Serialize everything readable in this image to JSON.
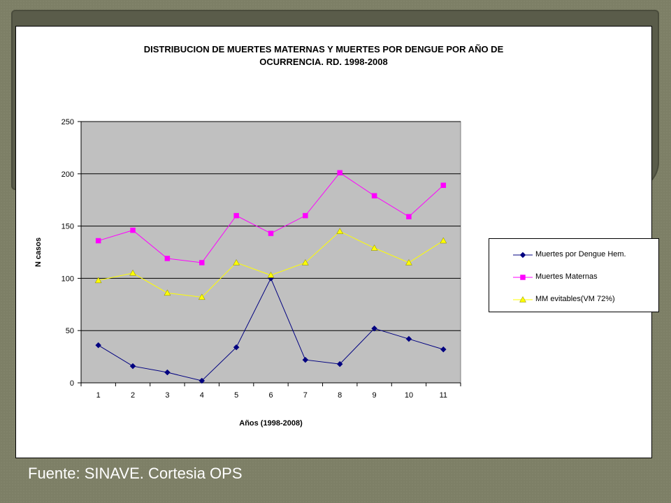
{
  "footer": {
    "source": "Fuente: SINAVE. Cortesia OPS"
  },
  "chart_data": {
    "type": "line",
    "title_lines": [
      "DISTRIBUCION DE MUERTES MATERNAS Y MUERTES POR DENGUE POR AÑO DE",
      "OCURRENCIA. RD. 1998-2008"
    ],
    "xlabel": "Años (1998-2008)",
    "ylabel": "N casos",
    "x": [
      1,
      2,
      3,
      4,
      5,
      6,
      7,
      8,
      9,
      10,
      11
    ],
    "ylim": [
      0,
      250
    ],
    "yticks": [
      0,
      50,
      100,
      150,
      200,
      250
    ],
    "grid": true,
    "plot_background": "#c0c0c0",
    "legend_position": "right",
    "series": [
      {
        "name": "Muertes por Dengue Hem.",
        "color": "#000080",
        "marker": "diamond",
        "values": [
          36,
          16,
          10,
          2,
          34,
          100,
          22,
          18,
          52,
          42,
          32
        ]
      },
      {
        "name": "Muertes Maternas",
        "color": "#ff00ff",
        "marker": "square",
        "values": [
          136,
          146,
          119,
          115,
          160,
          143,
          160,
          201,
          179,
          159,
          189
        ]
      },
      {
        "name": "MM evitables(VM 72%)",
        "color": "#ffff00",
        "marker": "triangle",
        "values": [
          98,
          105,
          86,
          82,
          115,
          103,
          115,
          145,
          129,
          115,
          136
        ]
      }
    ]
  }
}
